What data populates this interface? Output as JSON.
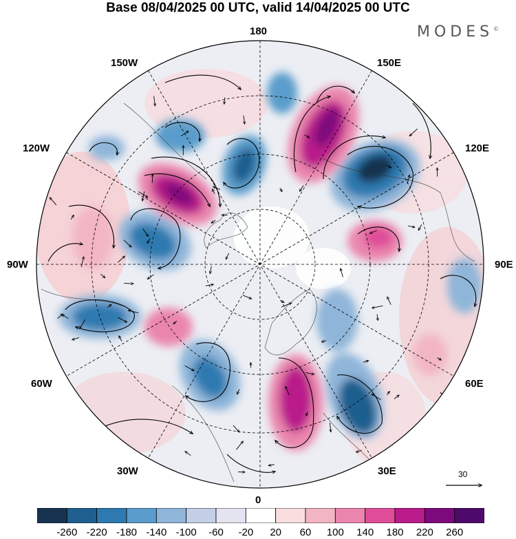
{
  "title": "Base 08/04/2025 00 UTC, valid 14/04/2025 00 UTC",
  "brand": "MODES",
  "brand_mark": "©",
  "longitude_labels": {
    "top": "180",
    "bottom": "0",
    "left": "90W",
    "right": "90E",
    "upper_left_inner": "150W",
    "upper_left_outer": "120W",
    "upper_right_inner": "150E",
    "upper_right_outer": "120E",
    "lower_left_outer": "60W",
    "lower_left_inner": "30W",
    "lower_right_outer": "60E",
    "lower_right_inner": "30E"
  },
  "reference_vector": {
    "label": "30"
  },
  "colorbar": {
    "labels": [
      "-260",
      "-220",
      "-180",
      "-140",
      "-100",
      "-60",
      "-20",
      "20",
      "60",
      "100",
      "140",
      "180",
      "220",
      "260"
    ],
    "colors": [
      "#17334f",
      "#1f5f8f",
      "#2e7ab0",
      "#5a9ccb",
      "#8fb5d9",
      "#c3cfe6",
      "#e4e4f1",
      "#ffffff",
      "#f9dedf",
      "#f2b5c4",
      "#ea86ad",
      "#df4d9a",
      "#b91b8a",
      "#7d0a7c",
      "#4e0a6a"
    ]
  },
  "anomaly_features": [
    {
      "sign": "negative",
      "magnitude": 260,
      "color": "#1f4f7a"
    },
    {
      "sign": "positive",
      "magnitude": 260,
      "color": "#7d0a7c"
    }
  ]
}
